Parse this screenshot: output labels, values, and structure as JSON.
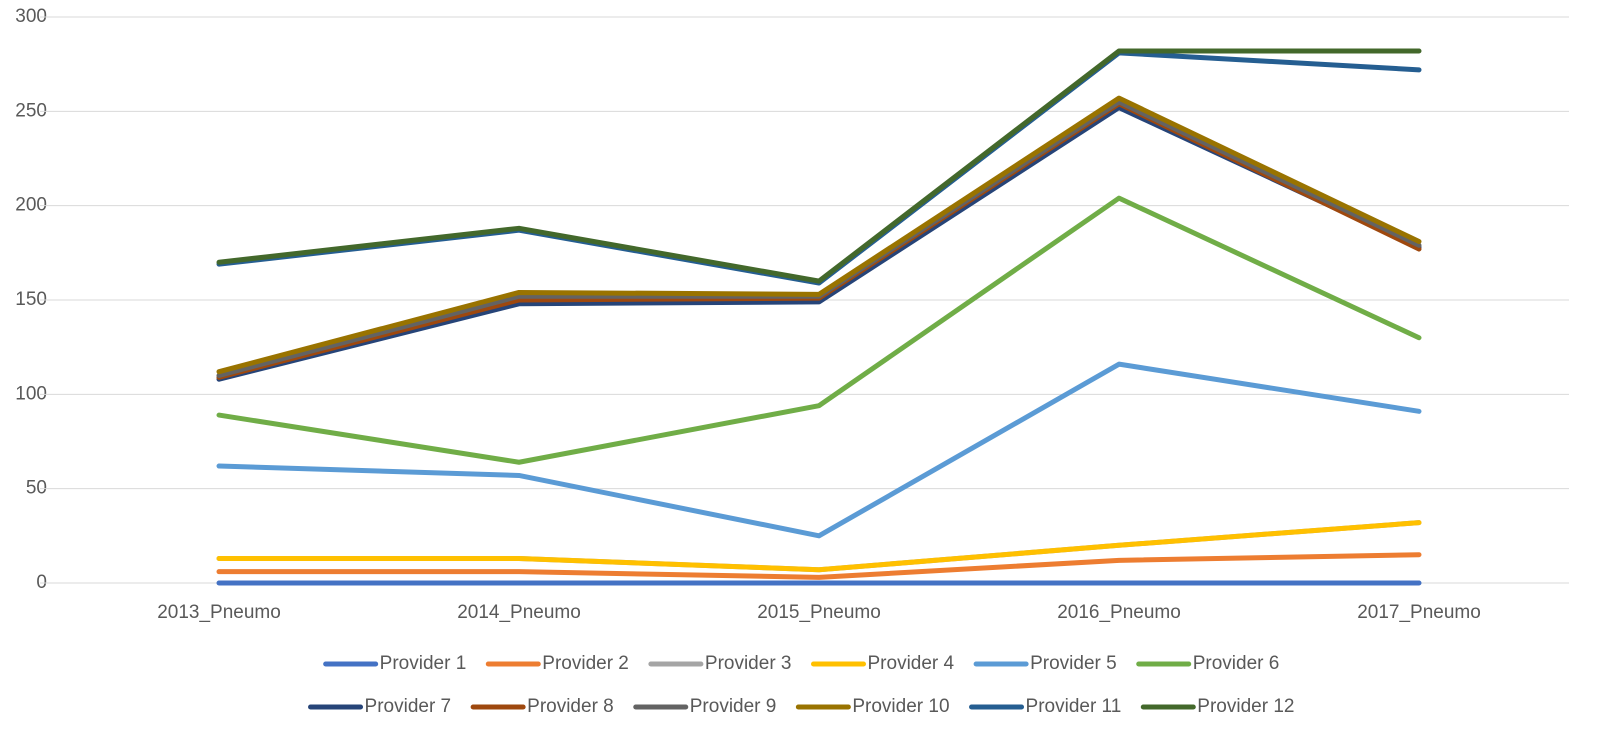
{
  "chart_data": {
    "type": "line",
    "categories": [
      "2013_Pneumo",
      "2014_Pneumo",
      "2015_Pneumo",
      "2016_Pneumo",
      "2017_Pneumo"
    ],
    "series": [
      {
        "name": "Provider 1",
        "color": "#4472c4",
        "values": [
          0,
          0,
          0,
          0,
          0
        ]
      },
      {
        "name": "Provider 2",
        "color": "#ed7d31",
        "values": [
          6,
          6,
          3,
          12,
          15
        ]
      },
      {
        "name": "Provider 3",
        "color": "#a5a5a5",
        "values": [
          13,
          13,
          7,
          20,
          32
        ]
      },
      {
        "name": "Provider 4",
        "color": "#ffc000",
        "values": [
          13,
          13,
          7,
          20,
          32
        ]
      },
      {
        "name": "Provider 5",
        "color": "#5b9bd5",
        "values": [
          62,
          57,
          25,
          116,
          91
        ]
      },
      {
        "name": "Provider 6",
        "color": "#70ad47",
        "values": [
          89,
          64,
          94,
          204,
          130
        ]
      },
      {
        "name": "Provider 7",
        "color": "#264478",
        "values": [
          108,
          148,
          149,
          252,
          178
        ]
      },
      {
        "name": "Provider 8",
        "color": "#9e480e",
        "values": [
          109,
          150,
          151,
          254,
          177
        ]
      },
      {
        "name": "Provider 9",
        "color": "#636363",
        "values": [
          110,
          152,
          152,
          255,
          179
        ]
      },
      {
        "name": "Provider 10",
        "color": "#997300",
        "values": [
          112,
          154,
          153,
          257,
          181
        ]
      },
      {
        "name": "Provider 11",
        "color": "#255e91",
        "values": [
          169,
          187,
          159,
          281,
          272
        ]
      },
      {
        "name": "Provider 12",
        "color": "#43682b",
        "values": [
          170,
          188,
          160,
          282,
          282
        ]
      }
    ],
    "ylim": [
      0,
      300
    ],
    "yticks": [
      0,
      50,
      100,
      150,
      200,
      250,
      300
    ],
    "grid": true,
    "legend": "bottom"
  }
}
